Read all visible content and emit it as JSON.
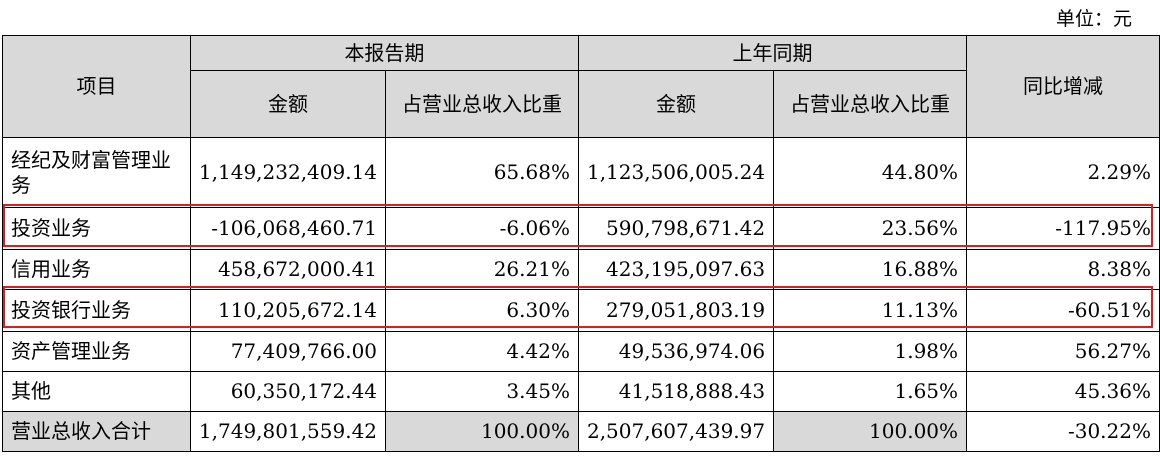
{
  "unit_label": "单位：元",
  "headers": {
    "item": "项目",
    "current_period": "本报告期",
    "prior_period": "上年同期",
    "amount": "金额",
    "ratio": "占营业总收入比重",
    "yoy": "同比增减"
  },
  "rows": [
    {
      "label": "经纪及财富管理业务",
      "cur_amount": "1,149,232,409.14",
      "cur_ratio": "65.68%",
      "prev_amount": "1,123,506,005.24",
      "prev_ratio": "44.80%",
      "yoy": "2.29%"
    },
    {
      "label": "投资业务",
      "cur_amount": "-106,068,460.71",
      "cur_ratio": "-6.06%",
      "prev_amount": "590,798,671.42",
      "prev_ratio": "23.56%",
      "yoy": "-117.95%"
    },
    {
      "label": "信用业务",
      "cur_amount": "458,672,000.41",
      "cur_ratio": "26.21%",
      "prev_amount": "423,195,097.63",
      "prev_ratio": "16.88%",
      "yoy": "8.38%"
    },
    {
      "label": "投资银行业务",
      "cur_amount": "110,205,672.14",
      "cur_ratio": "6.30%",
      "prev_amount": "279,051,803.19",
      "prev_ratio": "11.13%",
      "yoy": "-60.51%"
    },
    {
      "label": "资产管理业务",
      "cur_amount": "77,409,766.00",
      "cur_ratio": "4.42%",
      "prev_amount": "49,536,974.06",
      "prev_ratio": "1.98%",
      "yoy": "56.27%"
    },
    {
      "label": "其他",
      "cur_amount": "60,350,172.44",
      "cur_ratio": "3.45%",
      "prev_amount": "41,518,888.43",
      "prev_ratio": "1.65%",
      "yoy": "45.36%"
    }
  ],
  "total": {
    "label": "营业总收入合计",
    "cur_amount": "1,749,801,559.42",
    "cur_ratio": "100.00%",
    "prev_amount": "2,507,607,439.97",
    "prev_ratio": "100.00%",
    "yoy": "-30.22%"
  },
  "highlight_color": "#d92020"
}
